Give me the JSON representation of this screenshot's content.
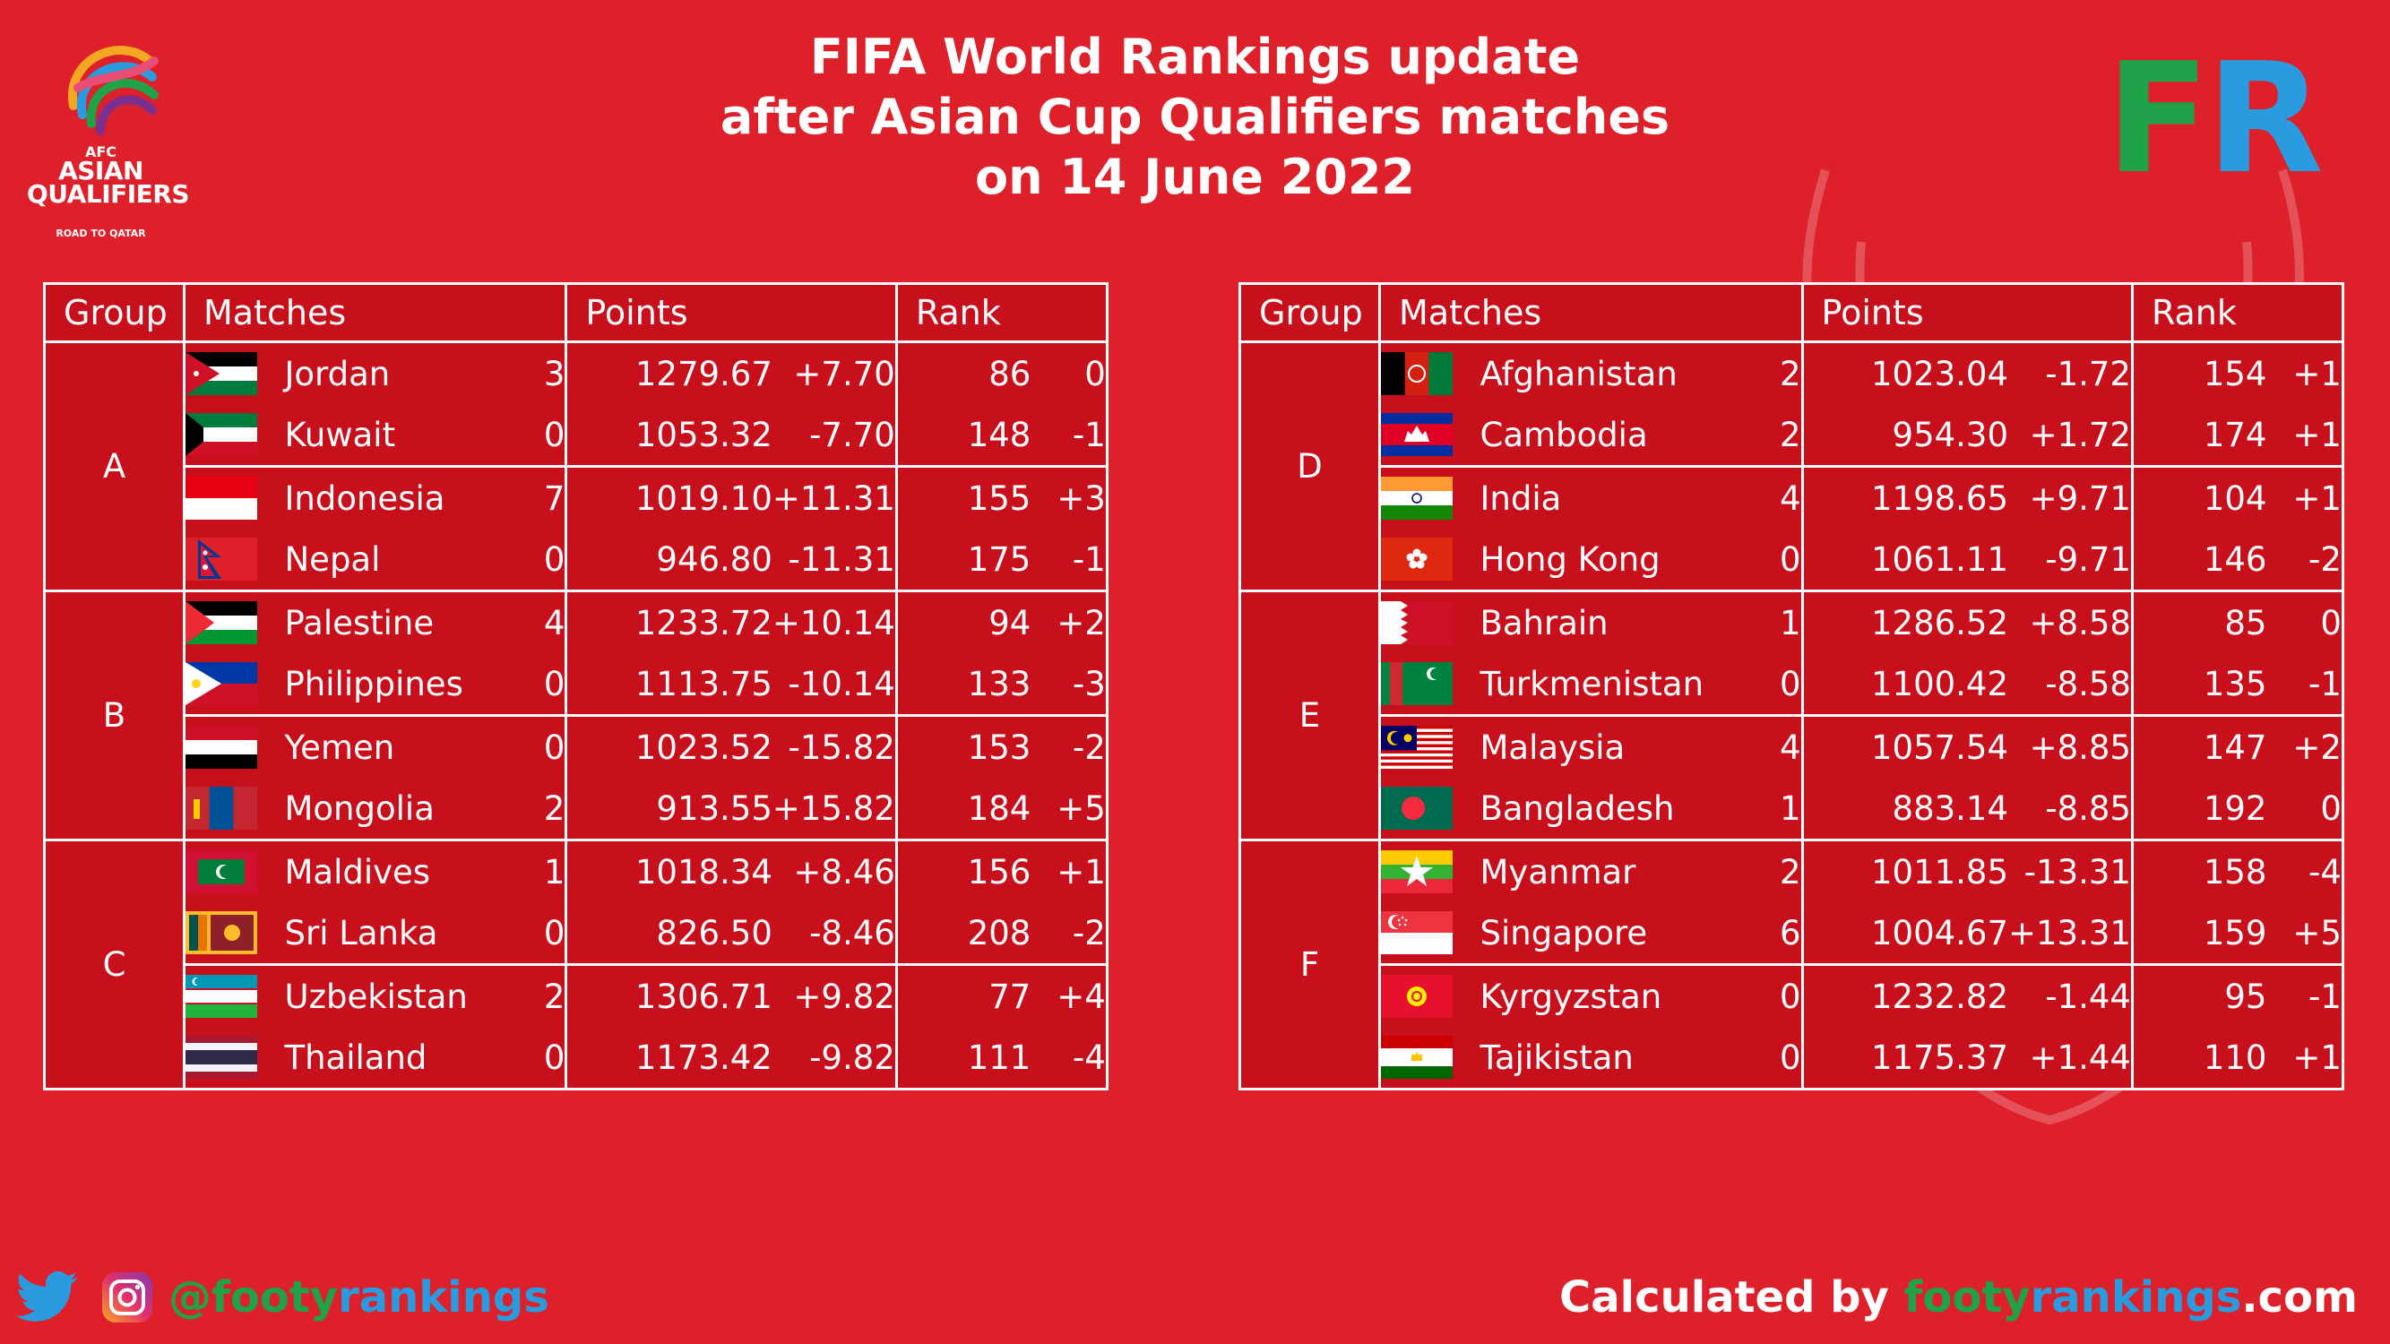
{
  "brand_logo_text": {
    "line1": "AFC",
    "line2": "ASIAN",
    "line3": "QUALIFIERS",
    "line4": "ROAD TO QATAR"
  },
  "title": [
    "FIFA World Rankings update",
    "after Asian Cup Qualifiers matches",
    "on 14 June 2022"
  ],
  "fr_logo": {
    "f": "F",
    "r": "R",
    "f_color": "#1fa24a",
    "r_color": "#2b9be0"
  },
  "headers": {
    "group": "Group",
    "matches": "Matches",
    "points": "Points",
    "rank": "Rank"
  },
  "left_table": [
    {
      "group": "A",
      "rows": [
        {
          "country": "Jordan",
          "flag": "jordan-flag",
          "score": "3",
          "points": "1279.67",
          "change": "+7.70",
          "rank": "86",
          "rank_change": "0"
        },
        {
          "country": "Kuwait",
          "flag": "kuwait-flag",
          "score": "0",
          "points": "1053.32",
          "change": "-7.70",
          "rank": "148",
          "rank_change": "-1"
        },
        {
          "country": "Indonesia",
          "flag": "indonesia-flag",
          "score": "7",
          "points": "1019.10",
          "change": "+11.31",
          "rank": "155",
          "rank_change": "+3"
        },
        {
          "country": "Nepal",
          "flag": "nepal-flag",
          "score": "0",
          "points": "946.80",
          "change": "-11.31",
          "rank": "175",
          "rank_change": "-1"
        }
      ]
    },
    {
      "group": "B",
      "rows": [
        {
          "country": "Palestine",
          "flag": "palestine-flag",
          "score": "4",
          "points": "1233.72",
          "change": "+10.14",
          "rank": "94",
          "rank_change": "+2"
        },
        {
          "country": "Philippines",
          "flag": "philippines-flag",
          "score": "0",
          "points": "1113.75",
          "change": "-10.14",
          "rank": "133",
          "rank_change": "-3"
        },
        {
          "country": "Yemen",
          "flag": "yemen-flag",
          "score": "0",
          "points": "1023.52",
          "change": "-15.82",
          "rank": "153",
          "rank_change": "-2"
        },
        {
          "country": "Mongolia",
          "flag": "mongolia-flag",
          "score": "2",
          "points": "913.55",
          "change": "+15.82",
          "rank": "184",
          "rank_change": "+5"
        }
      ]
    },
    {
      "group": "C",
      "rows": [
        {
          "country": "Maldives",
          "flag": "maldives-flag",
          "score": "1",
          "points": "1018.34",
          "change": "+8.46",
          "rank": "156",
          "rank_change": "+1"
        },
        {
          "country": "Sri Lanka",
          "flag": "sri-lanka-flag",
          "score": "0",
          "points": "826.50",
          "change": "-8.46",
          "rank": "208",
          "rank_change": "-2"
        },
        {
          "country": "Uzbekistan",
          "flag": "uzbekistan-flag",
          "score": "2",
          "points": "1306.71",
          "change": "+9.82",
          "rank": "77",
          "rank_change": "+4"
        },
        {
          "country": "Thailand",
          "flag": "thailand-flag",
          "score": "0",
          "points": "1173.42",
          "change": "-9.82",
          "rank": "111",
          "rank_change": "-4"
        }
      ]
    }
  ],
  "right_table": [
    {
      "group": "D",
      "rows": [
        {
          "country": "Afghanistan",
          "flag": "afghanistan-flag",
          "score": "2",
          "points": "1023.04",
          "change": "-1.72",
          "rank": "154",
          "rank_change": "+1"
        },
        {
          "country": "Cambodia",
          "flag": "cambodia-flag",
          "score": "2",
          "points": "954.30",
          "change": "+1.72",
          "rank": "174",
          "rank_change": "+1"
        },
        {
          "country": "India",
          "flag": "india-flag",
          "score": "4",
          "points": "1198.65",
          "change": "+9.71",
          "rank": "104",
          "rank_change": "+1"
        },
        {
          "country": "Hong Kong",
          "flag": "hong-kong-flag",
          "score": "0",
          "points": "1061.11",
          "change": "-9.71",
          "rank": "146",
          "rank_change": "-2"
        }
      ]
    },
    {
      "group": "E",
      "rows": [
        {
          "country": "Bahrain",
          "flag": "bahrain-flag",
          "score": "1",
          "points": "1286.52",
          "change": "+8.58",
          "rank": "85",
          "rank_change": "0"
        },
        {
          "country": "Turkmenistan",
          "flag": "turkmenistan-flag",
          "score": "0",
          "points": "1100.42",
          "change": "-8.58",
          "rank": "135",
          "rank_change": "-1"
        },
        {
          "country": "Malaysia",
          "flag": "malaysia-flag",
          "score": "4",
          "points": "1057.54",
          "change": "+8.85",
          "rank": "147",
          "rank_change": "+2"
        },
        {
          "country": "Bangladesh",
          "flag": "bangladesh-flag",
          "score": "1",
          "points": "883.14",
          "change": "-8.85",
          "rank": "192",
          "rank_change": "0"
        }
      ]
    },
    {
      "group": "F",
      "rows": [
        {
          "country": "Myanmar",
          "flag": "myanmar-flag",
          "score": "2",
          "points": "1011.85",
          "change": "-13.31",
          "rank": "158",
          "rank_change": "-4"
        },
        {
          "country": "Singapore",
          "flag": "singapore-flag",
          "score": "6",
          "points": "1004.67",
          "change": "+13.31",
          "rank": "159",
          "rank_change": "+5"
        },
        {
          "country": "Kyrgyzstan",
          "flag": "kyrgyzstan-flag",
          "score": "0",
          "points": "1232.82",
          "change": "-1.44",
          "rank": "95",
          "rank_change": "-1"
        },
        {
          "country": "Tajikistan",
          "flag": "tajikistan-flag",
          "score": "0",
          "points": "1175.37",
          "change": "+1.44",
          "rank": "110",
          "rank_change": "+1"
        }
      ]
    }
  ],
  "footer": {
    "handle_at": "@",
    "handle_a": "footy",
    "handle_b": "rankings",
    "credit_prefix": "Calculated by ",
    "credit_a": "footy",
    "credit_b": "rankings",
    "credit_suffix": ".com",
    "twitter_icon": "twitter-icon",
    "instagram_icon": "instagram-icon"
  },
  "colors": {
    "background": "#dd2029",
    "table_bg": "#c8101d",
    "green": "#1fa24a",
    "blue": "#2b9be0",
    "white": "#ffffff"
  }
}
